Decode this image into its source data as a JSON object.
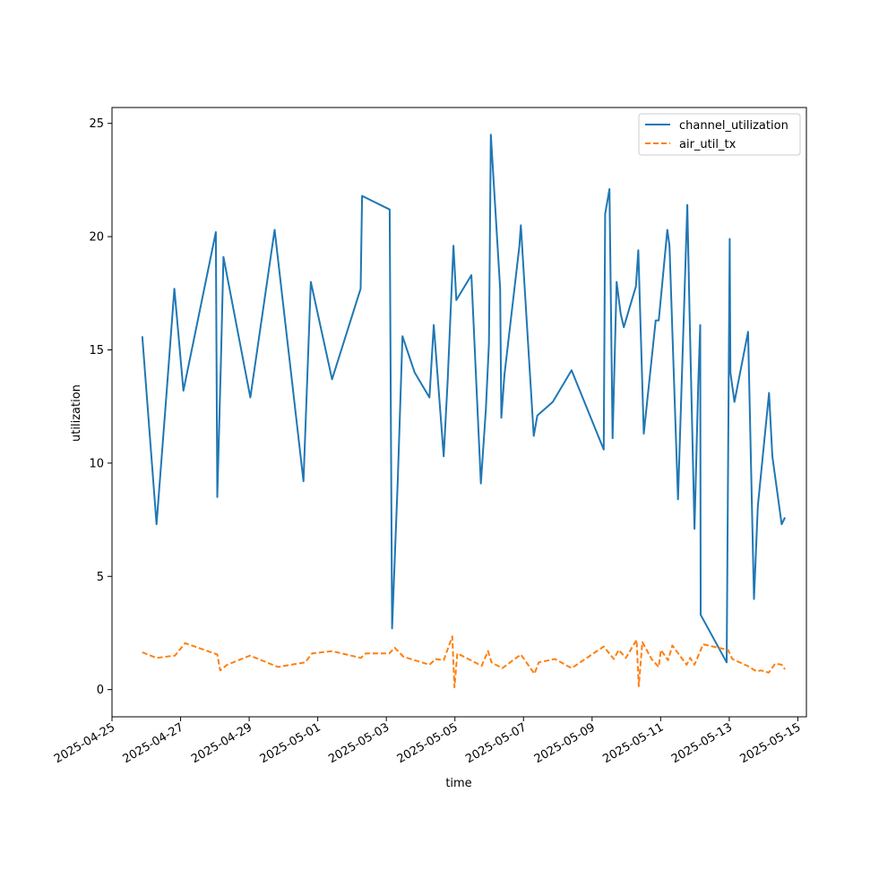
{
  "chart_data": {
    "type": "line",
    "xlabel": "time",
    "ylabel": "utilization",
    "xlim": [
      "2025-04-25",
      "2025-05-15T06:00"
    ],
    "ylim": [
      -1.2,
      25.7
    ],
    "x_ticks": [
      "2025-04-25",
      "2025-04-27",
      "2025-04-29",
      "2025-05-01",
      "2025-05-03",
      "2025-05-05",
      "2025-05-07",
      "2025-05-09",
      "2025-05-11",
      "2025-05-13",
      "2025-05-15"
    ],
    "y_ticks": [
      0,
      5,
      10,
      15,
      20,
      25
    ],
    "grid": false,
    "legend_position": "top-right",
    "series": [
      {
        "name": "channel_utilization",
        "color": "#1f77b4",
        "style": "solid",
        "points": [
          [
            "2025-04-25T21:10",
            15.6
          ],
          [
            "2025-04-26T07:10",
            7.3
          ],
          [
            "2025-04-26T14:20",
            13.2
          ],
          [
            "2025-04-26T19:40",
            17.7
          ],
          [
            "2025-04-27T02:00",
            13.2
          ],
          [
            "2025-04-28T00:40",
            20.2
          ],
          [
            "2025-04-28T01:40",
            8.5
          ],
          [
            "2025-04-28T04:10",
            14.4
          ],
          [
            "2025-04-28T06:00",
            19.1
          ],
          [
            "2025-04-29T00:50",
            12.9
          ],
          [
            "2025-04-29T17:50",
            20.3
          ],
          [
            "2025-04-30T14:00",
            9.2
          ],
          [
            "2025-04-30T19:10",
            18.0
          ],
          [
            "2025-05-01T10:00",
            13.7
          ],
          [
            "2025-05-02T06:00",
            17.7
          ],
          [
            "2025-05-02T07:00",
            21.8
          ],
          [
            "2025-05-03T02:20",
            21.2
          ],
          [
            "2025-05-03T04:00",
            2.7
          ],
          [
            "2025-05-03T08:00",
            9.2
          ],
          [
            "2025-05-03T11:20",
            15.6
          ],
          [
            "2025-05-03T19:50",
            14.0
          ],
          [
            "2025-05-04T06:10",
            12.9
          ],
          [
            "2025-05-04T09:10",
            16.1
          ],
          [
            "2025-05-04T16:10",
            10.3
          ],
          [
            "2025-05-04T19:00",
            13.7
          ],
          [
            "2025-05-04T23:00",
            19.6
          ],
          [
            "2025-05-05T01:00",
            17.2
          ],
          [
            "2025-05-05T11:30",
            18.3
          ],
          [
            "2025-05-05T18:10",
            9.1
          ],
          [
            "2025-05-05T21:40",
            12.4
          ],
          [
            "2025-05-05T23:50",
            15.3
          ],
          [
            "2025-05-06T01:10",
            24.5
          ],
          [
            "2025-05-06T07:40",
            17.7
          ],
          [
            "2025-05-06T08:30",
            12.0
          ],
          [
            "2025-05-06T10:40",
            13.9
          ],
          [
            "2025-05-06T21:10",
            19.6
          ],
          [
            "2025-05-06T22:10",
            20.5
          ],
          [
            "2025-05-07T07:10",
            11.2
          ],
          [
            "2025-05-07T09:40",
            12.1
          ],
          [
            "2025-05-07T20:30",
            12.7
          ],
          [
            "2025-05-08T09:40",
            14.1
          ],
          [
            "2025-05-09T08:10",
            10.6
          ],
          [
            "2025-05-09T09:10",
            21.0
          ],
          [
            "2025-05-09T12:10",
            22.1
          ],
          [
            "2025-05-09T14:20",
            11.1
          ],
          [
            "2025-05-09T17:10",
            18.0
          ],
          [
            "2025-05-09T20:00",
            16.6
          ],
          [
            "2025-05-09T22:10",
            16.0
          ],
          [
            "2025-05-10T06:40",
            17.8
          ],
          [
            "2025-05-10T08:20",
            19.4
          ],
          [
            "2025-05-10T12:10",
            11.3
          ],
          [
            "2025-05-10T20:30",
            16.3
          ],
          [
            "2025-05-10T22:40",
            16.3
          ],
          [
            "2025-05-11T04:40",
            20.3
          ],
          [
            "2025-05-11T06:10",
            19.6
          ],
          [
            "2025-05-11T12:10",
            8.4
          ],
          [
            "2025-05-11T18:40",
            21.4
          ],
          [
            "2025-05-11T20:10",
            16.8
          ],
          [
            "2025-05-11T23:40",
            7.1
          ],
          [
            "2025-05-12T02:20",
            13.5
          ],
          [
            "2025-05-12T03:40",
            16.1
          ],
          [
            "2025-05-12T04:00",
            3.3
          ],
          [
            "2025-05-12T22:10",
            1.2
          ],
          [
            "2025-05-13T00:20",
            19.9
          ],
          [
            "2025-05-13T00:50",
            14.0
          ],
          [
            "2025-05-13T03:40",
            12.7
          ],
          [
            "2025-05-13T13:10",
            15.8
          ],
          [
            "2025-05-13T17:20",
            4.0
          ],
          [
            "2025-05-13T20:00",
            8.1
          ],
          [
            "2025-05-14T03:50",
            13.1
          ],
          [
            "2025-05-14T06:10",
            10.3
          ],
          [
            "2025-05-14T12:40",
            7.3
          ],
          [
            "2025-05-14T15:00",
            7.6
          ]
        ]
      },
      {
        "name": "air_util_tx",
        "color": "#ff7f0e",
        "style": "dashed",
        "points": [
          [
            "2025-04-25T21:10",
            1.65
          ],
          [
            "2025-04-26T07:10",
            1.4
          ],
          [
            "2025-04-26T20:00",
            1.5
          ],
          [
            "2025-04-27T03:10",
            2.05
          ],
          [
            "2025-04-28T01:40",
            1.55
          ],
          [
            "2025-04-28T03:40",
            0.85
          ],
          [
            "2025-04-28T08:40",
            1.1
          ],
          [
            "2025-04-29T00:40",
            1.5
          ],
          [
            "2025-04-29T20:10",
            1.0
          ],
          [
            "2025-04-30T15:10",
            1.2
          ],
          [
            "2025-04-30T20:10",
            1.6
          ],
          [
            "2025-05-01T10:00",
            1.7
          ],
          [
            "2025-05-02T06:10",
            1.4
          ],
          [
            "2025-05-02T09:40",
            1.6
          ],
          [
            "2025-05-03T02:10",
            1.6
          ],
          [
            "2025-05-03T05:50",
            1.85
          ],
          [
            "2025-05-03T12:00",
            1.45
          ],
          [
            "2025-05-04T06:10",
            1.1
          ],
          [
            "2025-05-04T10:30",
            1.35
          ],
          [
            "2025-05-04T16:10",
            1.3
          ],
          [
            "2025-05-04T22:10",
            2.35
          ],
          [
            "2025-05-04T23:40",
            0.1
          ],
          [
            "2025-05-05T01:40",
            1.6
          ],
          [
            "2025-05-05T18:40",
            1.05
          ],
          [
            "2025-05-05T23:10",
            1.7
          ],
          [
            "2025-05-06T01:40",
            1.2
          ],
          [
            "2025-05-06T09:10",
            0.95
          ],
          [
            "2025-05-06T22:10",
            1.55
          ],
          [
            "2025-05-07T07:40",
            0.7
          ],
          [
            "2025-05-07T10:40",
            1.2
          ],
          [
            "2025-05-07T22:00",
            1.35
          ],
          [
            "2025-05-08T09:40",
            0.95
          ],
          [
            "2025-05-09T08:10",
            1.9
          ],
          [
            "2025-05-09T15:10",
            1.35
          ],
          [
            "2025-05-09T18:40",
            1.75
          ],
          [
            "2025-05-09T23:40",
            1.4
          ],
          [
            "2025-05-10T07:10",
            2.2
          ],
          [
            "2025-05-10T08:40",
            0.15
          ],
          [
            "2025-05-10T11:10",
            2.1
          ],
          [
            "2025-05-10T17:40",
            1.35
          ],
          [
            "2025-05-10T22:40",
            1.0
          ],
          [
            "2025-05-11T00:10",
            1.75
          ],
          [
            "2025-05-11T05:10",
            1.3
          ],
          [
            "2025-05-11T08:10",
            1.95
          ],
          [
            "2025-05-11T18:10",
            1.1
          ],
          [
            "2025-05-11T20:40",
            1.4
          ],
          [
            "2025-05-11T23:40",
            1.1
          ],
          [
            "2025-05-12T05:40",
            2.0
          ],
          [
            "2025-05-12T23:10",
            1.75
          ],
          [
            "2025-05-13T02:10",
            1.35
          ],
          [
            "2025-05-13T12:40",
            1.05
          ],
          [
            "2025-05-13T19:10",
            0.8
          ],
          [
            "2025-05-13T22:10",
            0.85
          ],
          [
            "2025-05-14T03:40",
            0.75
          ],
          [
            "2025-05-14T08:10",
            1.15
          ],
          [
            "2025-05-14T12:40",
            1.1
          ],
          [
            "2025-05-14T15:00",
            0.9
          ]
        ]
      }
    ]
  }
}
